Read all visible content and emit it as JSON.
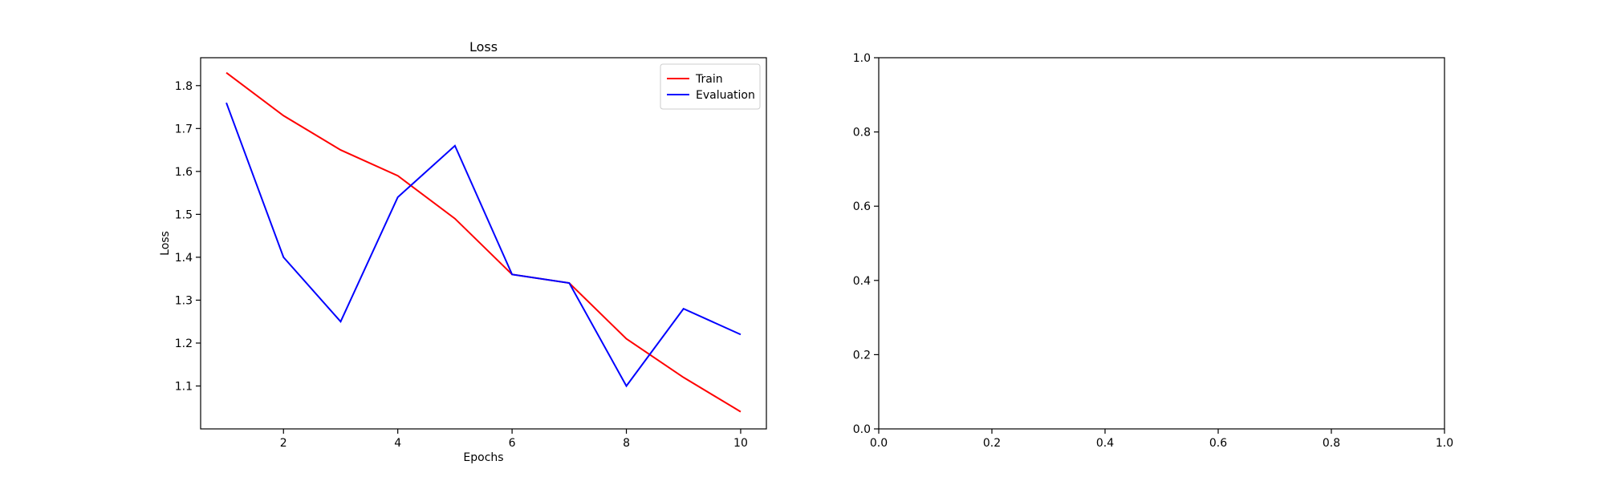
{
  "chart_data": [
    {
      "type": "line",
      "title": "Loss",
      "xlabel": "Epochs",
      "ylabel": "Loss",
      "x": [
        1,
        2,
        3,
        4,
        5,
        6,
        7,
        8,
        9,
        10
      ],
      "xlim": [
        0.55,
        10.45
      ],
      "ylim": [
        1.0,
        1.865
      ],
      "xticks": [
        2,
        4,
        6,
        8,
        10
      ],
      "yticks": [
        1.1,
        1.2,
        1.3,
        1.4,
        1.5,
        1.6,
        1.7,
        1.8
      ],
      "grid": false,
      "legend_position": "upper-right",
      "series": [
        {
          "name": "Train",
          "color": "#ff0000",
          "values": [
            1.83,
            1.73,
            1.65,
            1.59,
            1.49,
            1.36,
            1.34,
            1.21,
            1.12,
            1.04
          ]
        },
        {
          "name": "Evaluation",
          "color": "#0000ff",
          "values": [
            1.76,
            1.4,
            1.25,
            1.54,
            1.66,
            1.36,
            1.34,
            1.1,
            1.28,
            1.22
          ]
        }
      ]
    },
    {
      "type": "line",
      "title": "",
      "xlabel": "",
      "ylabel": "",
      "xlim": [
        0.0,
        1.0
      ],
      "ylim": [
        0.0,
        1.0
      ],
      "xticks": [
        0.0,
        0.2,
        0.4,
        0.6,
        0.8,
        1.0
      ],
      "yticks": [
        0.0,
        0.2,
        0.4,
        0.6,
        0.8,
        1.0
      ],
      "grid": false,
      "series": []
    }
  ]
}
